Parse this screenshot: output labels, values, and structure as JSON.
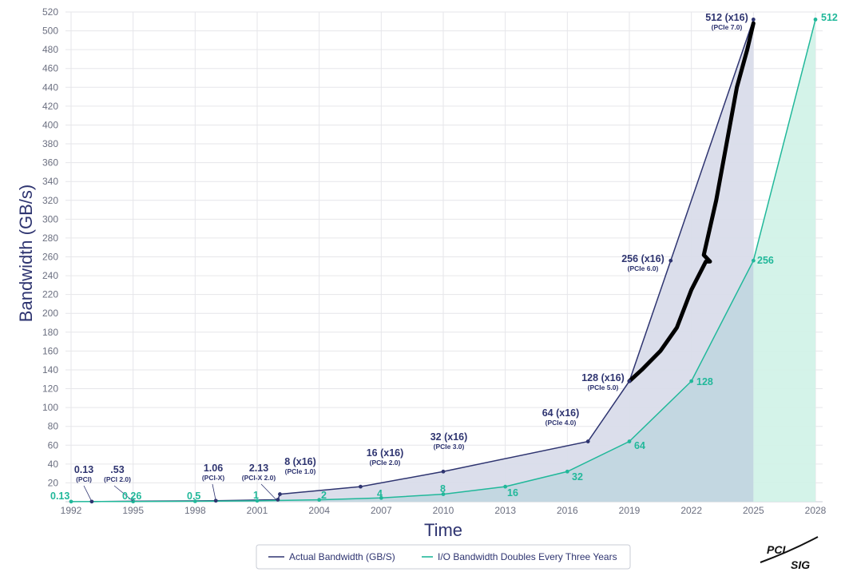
{
  "colors": {
    "actual": "#2e3470",
    "doubling": "#21b89a",
    "actual_fill": "#d9dcea",
    "overlap_fill": "#c2d6e0",
    "doubling_fill": "#d2f2e8",
    "grid": "#e6e6ea",
    "highlight": "#000000"
  },
  "chart_data": {
    "type": "line",
    "title": "",
    "xlabel": "Time",
    "ylabel": "Bandwidth (GB/s)",
    "xlim": [
      1992,
      2028
    ],
    "ylim": [
      0,
      520
    ],
    "x_ticks": [
      1992,
      1995,
      1998,
      2001,
      2004,
      2007,
      2010,
      2013,
      2016,
      2019,
      2022,
      2025,
      2028
    ],
    "y_ticks": [
      20,
      40,
      60,
      80,
      100,
      120,
      140,
      160,
      180,
      200,
      220,
      240,
      260,
      280,
      300,
      320,
      340,
      360,
      380,
      400,
      420,
      440,
      460,
      480,
      500,
      520
    ],
    "grid": true,
    "legend_position": "bottom-center",
    "series": [
      {
        "name": "Actual Bandwidth (GB/S)",
        "points": [
          {
            "x": 1993,
            "y": 0.13,
            "label": "0.13",
            "sub": "(PCI)"
          },
          {
            "x": 1995,
            "y": 0.53,
            "label": ".53",
            "sub": "(PCI 2.0)"
          },
          {
            "x": 1999,
            "y": 1.06,
            "label": "1.06",
            "sub": "(PCI-X)"
          },
          {
            "x": 2002,
            "y": 2.13,
            "label": "2.13",
            "sub": "(PCI-X 2.0)"
          },
          {
            "x": 2002.1,
            "y": 8,
            "label": "8 (x16)",
            "sub": "(PCIe 1.0)"
          },
          {
            "x": 2006,
            "y": 16,
            "label": "16 (x16)",
            "sub": "(PCIe 2.0)"
          },
          {
            "x": 2010,
            "y": 32,
            "label": "32 (x16)",
            "sub": "(PCIe 3.0)"
          },
          {
            "x": 2017,
            "y": 64,
            "label": "64 (x16)",
            "sub": "(PCIe 4.0)"
          },
          {
            "x": 2019,
            "y": 128,
            "label": "128 (x16)",
            "sub": "(PCIe 5.0)"
          },
          {
            "x": 2021,
            "y": 256,
            "label": "256 (x16)",
            "sub": "(PCIe 6.0)"
          },
          {
            "x": 2025,
            "y": 512,
            "label": "512 (x16)",
            "sub": "(PCIe 7.0)"
          }
        ]
      },
      {
        "name": "I/O Bandwidth Doubles Every Three Years",
        "points": [
          {
            "x": 1992,
            "y": 0.13,
            "label": "0.13"
          },
          {
            "x": 1995,
            "y": 0.26,
            "label": "0.26"
          },
          {
            "x": 1998,
            "y": 0.5,
            "label": "0.5"
          },
          {
            "x": 2001,
            "y": 1,
            "label": "1"
          },
          {
            "x": 2004,
            "y": 2,
            "label": "2"
          },
          {
            "x": 2007,
            "y": 4,
            "label": "4"
          },
          {
            "x": 2010,
            "y": 8,
            "label": "8"
          },
          {
            "x": 2013,
            "y": 16,
            "label": "16"
          },
          {
            "x": 2016,
            "y": 32,
            "label": "32"
          },
          {
            "x": 2019,
            "y": 64,
            "label": "64"
          },
          {
            "x": 2022,
            "y": 128,
            "label": "128"
          },
          {
            "x": 2025,
            "y": 256,
            "label": "256"
          },
          {
            "x": 2028,
            "y": 512,
            "label": "512"
          }
        ]
      }
    ],
    "annotation_stroke": {
      "note": "hand-drawn black line",
      "points": [
        {
          "x": 2019,
          "y": 128
        },
        {
          "x": 2019.6,
          "y": 140
        },
        {
          "x": 2020.5,
          "y": 160
        },
        {
          "x": 2021.3,
          "y": 185
        },
        {
          "x": 2022,
          "y": 225
        },
        {
          "x": 2022.7,
          "y": 255
        },
        {
          "x": 2022.9,
          "y": 255
        },
        {
          "x": 2022.6,
          "y": 262
        },
        {
          "x": 2023.2,
          "y": 320
        },
        {
          "x": 2023.7,
          "y": 380
        },
        {
          "x": 2024.2,
          "y": 440
        },
        {
          "x": 2024.7,
          "y": 480
        },
        {
          "x": 2025,
          "y": 508
        }
      ]
    }
  },
  "legend": {
    "actual_label": "Actual Bandwidth (GB/S)",
    "doubling_label": "I/O Bandwidth Doubles Every Three Years"
  },
  "logo": {
    "line1": "PCI",
    "line2": "SIG"
  }
}
